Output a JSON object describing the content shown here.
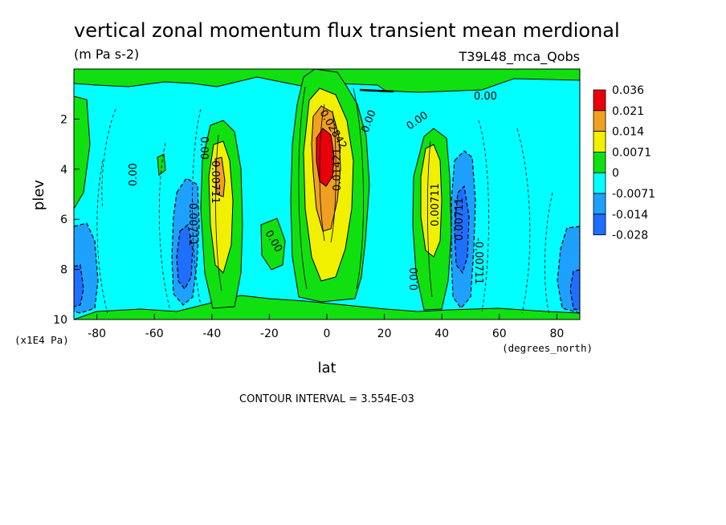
{
  "chart_data": {
    "type": "heatmap",
    "title": "vertical zonal momentum flux transient mean merdional",
    "units": "(m Pa s-2)",
    "run_label": "T39L48_mca_Qobs",
    "xlabel": "lat",
    "x_units": "(degrees_north)",
    "ylabel": "plev",
    "y_units": "(x1E4 Pa)",
    "xlim": [
      -88,
      88
    ],
    "ylim": [
      10,
      0
    ],
    "x_ticks": [
      "-80",
      "-60",
      "-40",
      "-20",
      "0",
      "20",
      "40",
      "60",
      "80"
    ],
    "y_ticks": [
      "2",
      "4",
      "6",
      "8",
      "10"
    ],
    "contour_interval_text": "CONTOUR INTERVAL = 3.554E-03",
    "legend": {
      "labels": [
        "0.036",
        "0.021",
        "0.014",
        "0.0071",
        "0",
        "-0.0071",
        "-0.014",
        "-0.028"
      ],
      "colors": [
        "#e8000b",
        "#f0a020",
        "#f0f000",
        "#10e010",
        "#00ffff",
        "#1ea0ff",
        "#1e6eff"
      ]
    },
    "contour_labels": [
      "0.00",
      "0.00",
      "0.00",
      "0.00",
      "0.00",
      "0.00",
      "0.00",
      "0.00711",
      "0.00711",
      "-0.00711",
      "0.00711",
      "-0.00711",
      "0.02842",
      "0.01421"
    ],
    "features": [
      {
        "name": "equatorial maximum",
        "lat_range": [
          -5,
          5
        ],
        "plev_range": [
          2,
          9
        ],
        "peak": 0.036
      },
      {
        "name": "southern subtropical maximum",
        "lat_range": [
          -42,
          -34
        ],
        "plev_range": [
          3,
          8.5
        ],
        "peak": 0.014
      },
      {
        "name": "northern subtropical maximum",
        "lat_range": [
          34,
          42
        ],
        "plev_range": [
          3,
          8.5
        ],
        "peak": 0.014
      },
      {
        "name": "southern minimum",
        "lat_range": [
          -55,
          -45
        ],
        "plev_range": [
          4,
          9.5
        ],
        "peak": -0.014
      },
      {
        "name": "northern minimum",
        "lat_range": [
          45,
          55
        ],
        "plev_range": [
          4,
          9.5
        ],
        "peak": -0.014
      },
      {
        "name": "south polar minimum",
        "lat_range": [
          -88,
          -78
        ],
        "plev_range": [
          6,
          10
        ],
        "peak": -0.014
      },
      {
        "name": "north polar minimum",
        "lat_range": [
          78,
          88
        ],
        "plev_range": [
          7,
          10
        ],
        "peak": -0.014
      }
    ]
  }
}
